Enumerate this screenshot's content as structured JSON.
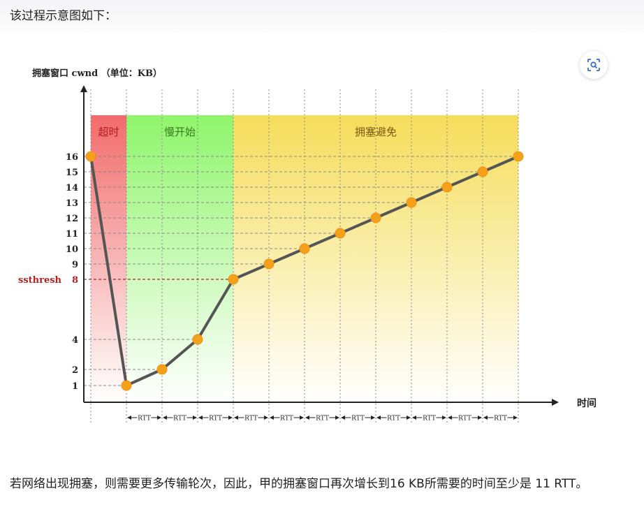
{
  "intro_text": "该过程示意图如下：",
  "outro_text": "若网络出现拥塞，则需要更多传输轮次，因此，甲的拥塞窗口再次增长到16 KB所需要的时间至少是 11 RTT。",
  "scan_button_icon": "scan-lens-icon",
  "chart_data": {
    "type": "line",
    "ylabel": "拥塞窗口 cwnd （单位：KB）",
    "xlabel": "时间",
    "regions": [
      {
        "label": "超时",
        "color": "#f26b6b"
      },
      {
        "label": "慢开始",
        "color": "#8ff56b"
      },
      {
        "label": "拥塞避免",
        "color": "#f5dd5a"
      }
    ],
    "y_ticks": [
      1,
      2,
      4,
      8,
      9,
      10,
      11,
      12,
      13,
      14,
      15,
      16
    ],
    "ssthresh": {
      "label": "ssthresh",
      "value": 8,
      "color": "#b22222"
    },
    "x": [
      0,
      1,
      2,
      3,
      4,
      5,
      6,
      7,
      8,
      9,
      10,
      11,
      12
    ],
    "values": [
      16,
      1,
      2,
      4,
      8,
      9,
      10,
      11,
      12,
      13,
      14,
      15,
      16
    ],
    "rtt_label": "RTT",
    "rtt_count": 11,
    "colors": {
      "line": "#555555",
      "marker": "#f5a01a",
      "axis": "#222222",
      "grid": "#888888"
    }
  }
}
